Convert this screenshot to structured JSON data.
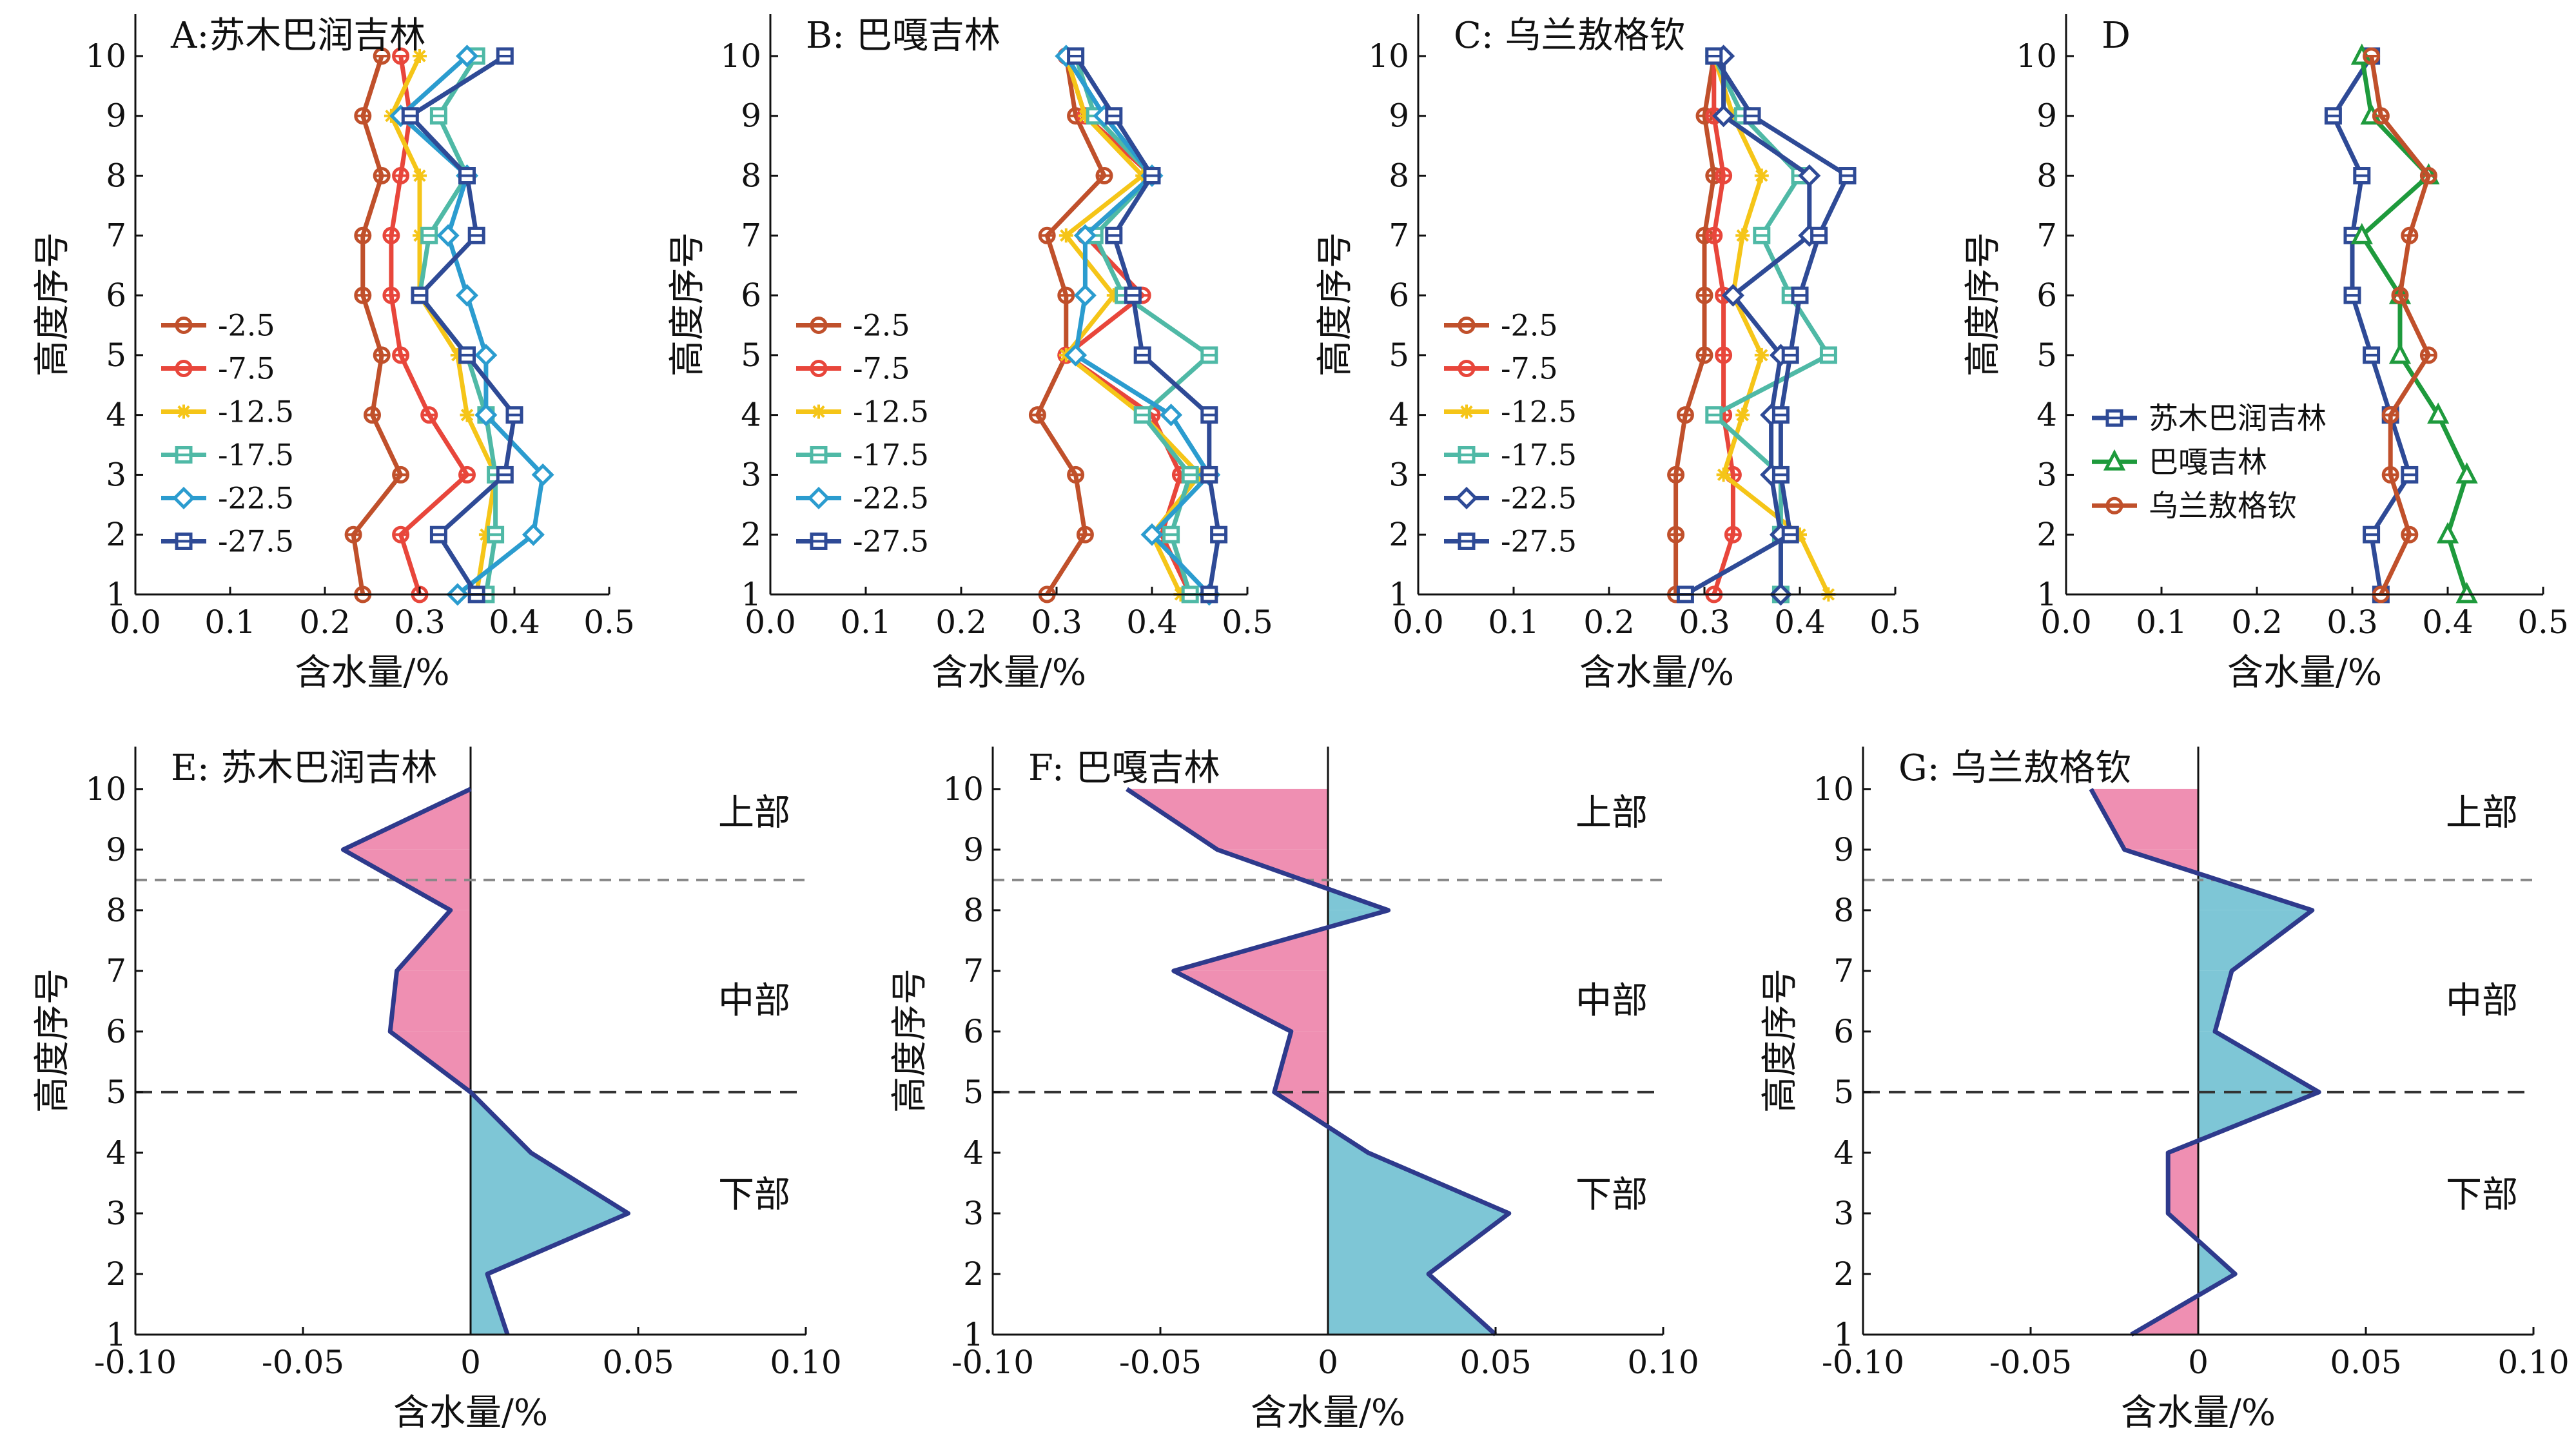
{
  "chart_data": [
    {
      "id": "A",
      "type": "line",
      "title": "A:苏木巴润吉林",
      "xlabel": "含水量/%",
      "ylabel": "高度序号",
      "xlim": [
        0,
        0.5
      ],
      "ylim": [
        1,
        10.7
      ],
      "grid": false,
      "legend": "left",
      "xticks": [
        "0.0",
        "0.1",
        "0.2",
        "0.3",
        "0.4",
        "0.5"
      ],
      "yticks": [
        "1",
        "2",
        "3",
        "4",
        "5",
        "6",
        "7",
        "8",
        "9",
        "10"
      ],
      "y": [
        1,
        2,
        3,
        4,
        5,
        6,
        7,
        8,
        9,
        10
      ],
      "series": [
        {
          "name": "-2.5",
          "color": "#c0502b",
          "marker": "circle",
          "values": [
            0.24,
            0.23,
            0.28,
            0.25,
            0.26,
            0.24,
            0.24,
            0.26,
            0.24,
            0.26
          ]
        },
        {
          "name": "-7.5",
          "color": "#e8463b",
          "marker": "circle",
          "values": [
            0.3,
            0.28,
            0.35,
            0.31,
            0.28,
            0.27,
            0.27,
            0.28,
            0.29,
            0.28
          ]
        },
        {
          "name": "-12.5",
          "color": "#f5c518",
          "marker": "star",
          "values": [
            0.36,
            0.37,
            0.38,
            0.35,
            0.34,
            0.3,
            0.3,
            0.3,
            0.27,
            0.3
          ]
        },
        {
          "name": "-17.5",
          "color": "#4fb9a6",
          "marker": "square",
          "values": [
            0.37,
            0.38,
            0.38,
            0.37,
            0.35,
            0.3,
            0.31,
            0.35,
            0.32,
            0.36
          ]
        },
        {
          "name": "-22.5",
          "color": "#2b9ccf",
          "marker": "diamond",
          "values": [
            0.34,
            0.42,
            0.43,
            0.37,
            0.37,
            0.35,
            0.33,
            0.35,
            0.28,
            0.35
          ]
        },
        {
          "name": "-27.5",
          "color": "#2e4a96",
          "marker": "square",
          "values": [
            0.36,
            0.32,
            0.39,
            0.4,
            0.35,
            0.3,
            0.36,
            0.35,
            0.29,
            0.39
          ]
        }
      ]
    },
    {
      "id": "B",
      "type": "line",
      "title": "B: 巴嘎吉林",
      "xlabel": "含水量/%",
      "ylabel": "高度序号",
      "xlim": [
        0,
        0.5
      ],
      "ylim": [
        1,
        10.7
      ],
      "grid": false,
      "legend": "left",
      "xticks": [
        "0.0",
        "0.1",
        "0.2",
        "0.3",
        "0.4",
        "0.5"
      ],
      "yticks": [
        "1",
        "2",
        "3",
        "4",
        "5",
        "6",
        "7",
        "8",
        "9",
        "10"
      ],
      "y": [
        1,
        2,
        3,
        4,
        5,
        6,
        7,
        8,
        9,
        10
      ],
      "series": [
        {
          "name": "-2.5",
          "color": "#c0502b",
          "marker": "circle",
          "values": [
            0.29,
            0.33,
            0.32,
            0.28,
            0.31,
            0.31,
            0.29,
            0.35,
            0.32,
            0.31
          ]
        },
        {
          "name": "-7.5",
          "color": "#e8463b",
          "marker": "circle",
          "values": [
            0.44,
            0.41,
            0.43,
            0.4,
            0.31,
            0.39,
            0.33,
            0.4,
            0.33,
            0.31
          ]
        },
        {
          "name": "-12.5",
          "color": "#f5c518",
          "marker": "star",
          "values": [
            0.43,
            0.4,
            0.45,
            0.39,
            0.31,
            0.36,
            0.31,
            0.39,
            0.33,
            0.31
          ]
        },
        {
          "name": "-17.5",
          "color": "#4fb9a6",
          "marker": "square",
          "values": [
            0.44,
            0.42,
            0.44,
            0.39,
            0.46,
            0.37,
            0.34,
            0.4,
            0.34,
            0.32
          ]
        },
        {
          "name": "-22.5",
          "color": "#2b9ccf",
          "marker": "diamond",
          "values": [
            0.46,
            0.4,
            0.46,
            0.42,
            0.32,
            0.33,
            0.33,
            0.4,
            0.35,
            0.31
          ]
        },
        {
          "name": "-27.5",
          "color": "#2e4a96",
          "marker": "square",
          "values": [
            0.46,
            0.47,
            0.46,
            0.46,
            0.39,
            0.38,
            0.36,
            0.4,
            0.36,
            0.32
          ]
        }
      ]
    },
    {
      "id": "C",
      "type": "line",
      "title": "C: 乌兰敖格钦",
      "xlabel": "含水量/%",
      "ylabel": "高度序号",
      "xlim": [
        0,
        0.5
      ],
      "ylim": [
        1,
        10.7
      ],
      "grid": false,
      "legend": "left",
      "xticks": [
        "0.0",
        "0.1",
        "0.2",
        "0.3",
        "0.4",
        "0.5"
      ],
      "yticks": [
        "1",
        "2",
        "3",
        "4",
        "5",
        "6",
        "7",
        "8",
        "9",
        "10"
      ],
      "y": [
        1,
        2,
        3,
        4,
        5,
        6,
        7,
        8,
        9,
        10
      ],
      "series": [
        {
          "name": "-2.5",
          "color": "#c0502b",
          "marker": "circle",
          "values": [
            0.27,
            0.27,
            0.27,
            0.28,
            0.3,
            0.3,
            0.3,
            0.31,
            0.3,
            0.31
          ]
        },
        {
          "name": "-7.5",
          "color": "#e8463b",
          "marker": "circle",
          "values": [
            0.31,
            0.33,
            0.33,
            0.32,
            0.32,
            0.32,
            0.31,
            0.32,
            0.31,
            0.31
          ]
        },
        {
          "name": "-12.5",
          "color": "#f5c518",
          "marker": "star",
          "values": [
            0.43,
            0.4,
            0.32,
            0.34,
            0.36,
            0.33,
            0.34,
            0.36,
            0.33,
            0.31
          ]
        },
        {
          "name": "-17.5",
          "color": "#4fb9a6",
          "marker": "square",
          "values": [
            0.38,
            0.38,
            0.38,
            0.31,
            0.43,
            0.39,
            0.36,
            0.4,
            0.34,
            0.31
          ]
        },
        {
          "name": "-22.5",
          "color": "#2e4a96",
          "marker": "diamond",
          "values": [
            0.38,
            0.38,
            0.37,
            0.37,
            0.38,
            0.33,
            0.41,
            0.41,
            0.32,
            0.32
          ]
        },
        {
          "name": "-27.5",
          "color": "#2e4a96",
          "marker": "square",
          "values": [
            0.28,
            0.39,
            0.38,
            0.38,
            0.39,
            0.4,
            0.42,
            0.45,
            0.35,
            0.31
          ]
        }
      ]
    },
    {
      "id": "D",
      "type": "line",
      "title": "D",
      "xlabel": "含水量/%",
      "ylabel": "高度序号",
      "xlim": [
        0,
        0.5
      ],
      "ylim": [
        1,
        10.7
      ],
      "grid": false,
      "legend": "lower-left",
      "xticks": [
        "0.0",
        "0.1",
        "0.2",
        "0.3",
        "0.4",
        "0.5"
      ],
      "yticks": [
        "1",
        "2",
        "3",
        "4",
        "5",
        "6",
        "7",
        "8",
        "9",
        "10"
      ],
      "y": [
        1,
        2,
        3,
        4,
        5,
        6,
        7,
        8,
        9,
        10
      ],
      "series": [
        {
          "name": "苏木巴润吉林",
          "color": "#2e4a96",
          "marker": "square",
          "values": [
            0.33,
            0.32,
            0.36,
            0.34,
            0.32,
            0.3,
            0.3,
            0.31,
            0.28,
            0.32
          ]
        },
        {
          "name": "巴嘎吉林",
          "color": "#1e9a3c",
          "marker": "triangle",
          "values": [
            0.42,
            0.4,
            0.42,
            0.39,
            0.35,
            0.35,
            0.31,
            0.38,
            0.32,
            0.31
          ]
        },
        {
          "name": "乌兰敖格钦",
          "color": "#c0502b",
          "marker": "circle",
          "values": [
            0.33,
            0.36,
            0.34,
            0.34,
            0.38,
            0.35,
            0.36,
            0.38,
            0.33,
            0.32
          ]
        }
      ]
    },
    {
      "id": "E",
      "type": "area",
      "title": "E: 苏木巴润吉林",
      "xlabel": "含水量/%",
      "ylabel": "高度序号",
      "xlim": [
        -0.1,
        0.1
      ],
      "ylim": [
        1,
        10.7
      ],
      "grid": false,
      "xticks": [
        "-0.10",
        "-0.05",
        "0",
        "0.05",
        "0.10"
      ],
      "yticks": [
        "1",
        "2",
        "3",
        "4",
        "5",
        "6",
        "7",
        "8",
        "9",
        "10"
      ],
      "y": [
        1,
        2,
        3,
        4,
        5,
        6,
        7,
        8,
        9,
        10
      ],
      "values": [
        0.011,
        0.005,
        0.047,
        0.018,
        0,
        -0.024,
        -0.022,
        -0.006,
        -0.038,
        0
      ],
      "dividers": [
        8.5,
        5.0
      ],
      "regions": [
        "上部",
        "中部",
        "下部"
      ],
      "positive_color": "#7ec6d6",
      "negative_color": "#ef8fb2",
      "line_color": "#2e3a8c"
    },
    {
      "id": "F",
      "type": "area",
      "title": "F: 巴嘎吉林",
      "xlabel": "含水量/%",
      "ylabel": "高度序号",
      "xlim": [
        -0.1,
        0.1
      ],
      "ylim": [
        1,
        10.7
      ],
      "grid": false,
      "xticks": [
        "-0.10",
        "-0.05",
        "0",
        "0.05",
        "0.10"
      ],
      "yticks": [
        "1",
        "2",
        "3",
        "4",
        "5",
        "6",
        "7",
        "8",
        "9",
        "10"
      ],
      "y": [
        1,
        2,
        3,
        4,
        5,
        6,
        7,
        8,
        9,
        10
      ],
      "values": [
        0.05,
        0.03,
        0.054,
        0.012,
        -0.016,
        -0.011,
        -0.046,
        0.018,
        -0.033,
        -0.06
      ],
      "dividers": [
        8.5,
        5.0
      ],
      "regions": [
        "上部",
        "中部",
        "下部"
      ],
      "positive_color": "#7ec6d6",
      "negative_color": "#ef8fb2",
      "line_color": "#2e3a8c"
    },
    {
      "id": "G",
      "type": "area",
      "title": "G: 乌兰敖格钦",
      "xlabel": "含水量/%",
      "ylabel": "高度序号",
      "xlim": [
        -0.1,
        0.1
      ],
      "ylim": [
        1,
        10.7
      ],
      "grid": false,
      "xticks": [
        "-0.10",
        "-0.05",
        "0",
        "0.05",
        "0.10"
      ],
      "yticks": [
        "1",
        "2",
        "3",
        "4",
        "5",
        "6",
        "7",
        "8",
        "9",
        "10"
      ],
      "y": [
        1,
        2,
        3,
        4,
        5,
        6,
        7,
        8,
        9,
        10
      ],
      "values": [
        -0.02,
        0.011,
        -0.009,
        -0.009,
        0.036,
        0.005,
        0.01,
        0.034,
        -0.022,
        -0.032
      ],
      "dividers": [
        8.5,
        5.0
      ],
      "regions": [
        "上部",
        "中部",
        "下部"
      ],
      "positive_color": "#7ec6d6",
      "negative_color": "#ef8fb2",
      "line_color": "#2e3a8c"
    }
  ]
}
